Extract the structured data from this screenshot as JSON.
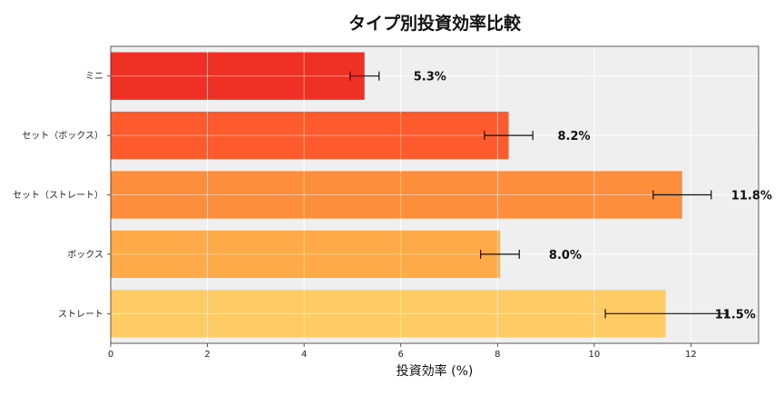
{
  "chart_data": {
    "type": "bar",
    "orientation": "horizontal",
    "title": "タイプ別投資効率比較",
    "xlabel": "投資効率 (%)",
    "ylabel": "",
    "xlim": [
      0,
      13.4
    ],
    "xticks": [
      0,
      2,
      4,
      6,
      8,
      10,
      12
    ],
    "grid": true,
    "categories": [
      "ミニ",
      "セット（ボックス）",
      "セット（ストレート）",
      "ボックス",
      "ストレート"
    ],
    "values": [
      5.25,
      8.23,
      11.82,
      8.05,
      11.48
    ],
    "errors": [
      0.3,
      0.5,
      0.6,
      0.4,
      1.25
    ],
    "data_labels": [
      "5.3%",
      "8.2%",
      "11.8%",
      "8.0%",
      "11.5%"
    ],
    "colors": [
      "#ee3124",
      "#fd5a2e",
      "#fd8e3c",
      "#feaa48",
      "#fecb65"
    ]
  }
}
